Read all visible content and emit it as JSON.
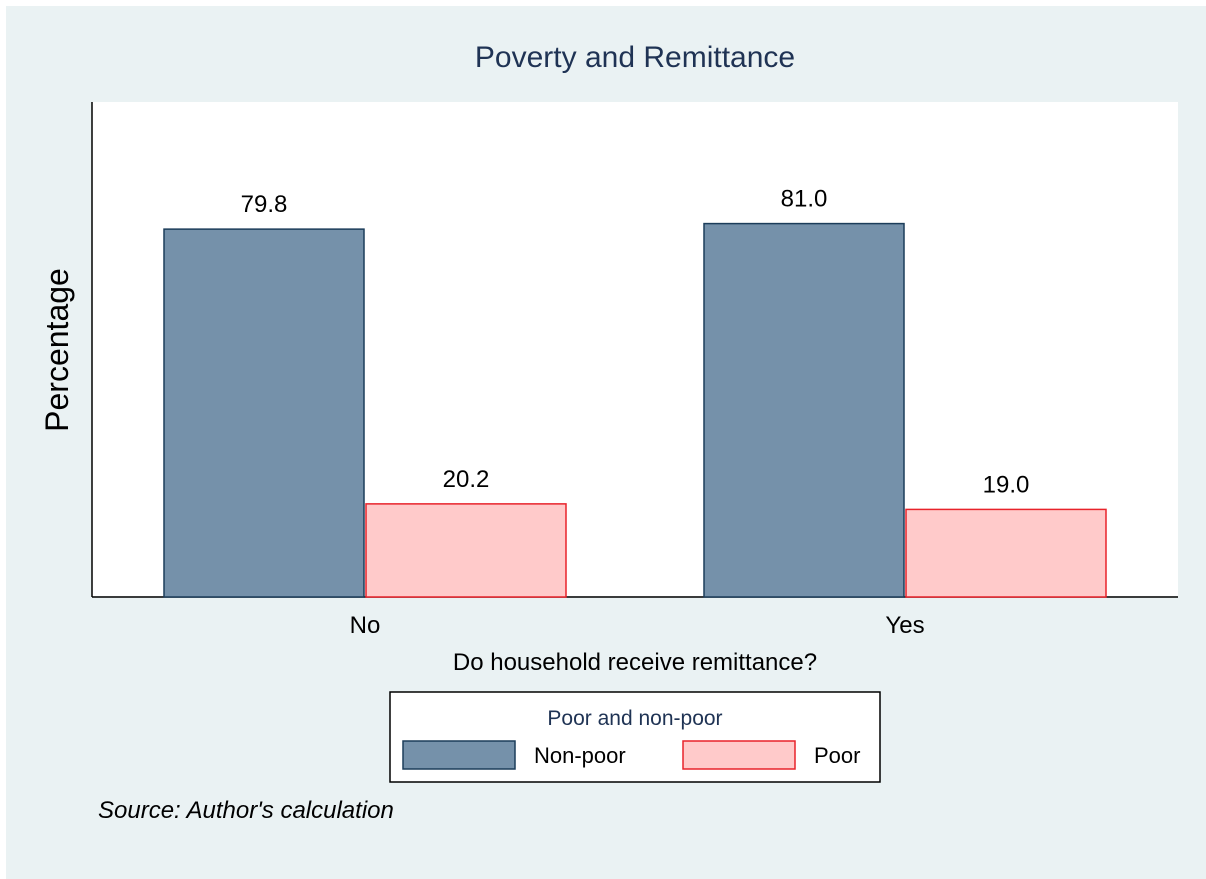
{
  "chart_data": {
    "type": "bar",
    "title": "Poverty and Remittance",
    "xlabel": "Do household receive remittance?",
    "ylabel": "Percentage",
    "categories": [
      "No",
      "Yes"
    ],
    "series": [
      {
        "name": "Non-poor",
        "values": [
          79.8,
          81.0
        ],
        "labels": [
          "79.8",
          "81.0"
        ],
        "color": "#7591aa",
        "stroke": "#1c3d5a"
      },
      {
        "name": "Poor",
        "values": [
          20.2,
          19.0
        ],
        "labels": [
          "20.2",
          "19.0"
        ],
        "color": "#ffcaca",
        "stroke": "#e8232b"
      }
    ],
    "ylim": [
      0,
      100
    ],
    "grid": false,
    "legend": {
      "title": "Poor and non-poor",
      "placement": "bottom-center"
    },
    "note": "Source: Author's calculation",
    "colors": {
      "background": "#eaf2f3",
      "plot_area": "#ffffff",
      "title": "#1f3354",
      "text": "#000000"
    }
  }
}
